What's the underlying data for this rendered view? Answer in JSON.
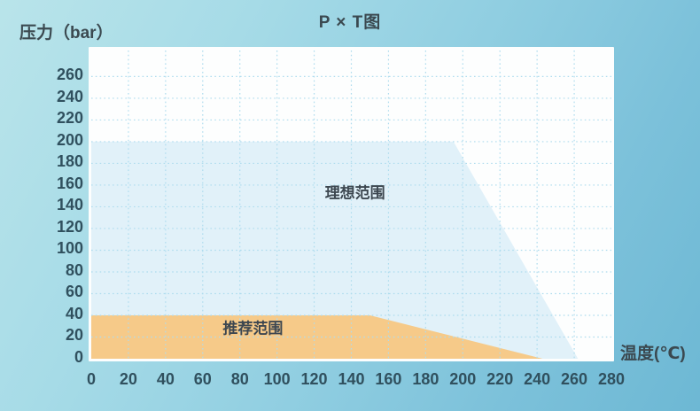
{
  "title": "P × T图",
  "y_axis": {
    "label": "压力（bar）"
  },
  "x_axis": {
    "label": "温度(℃)"
  },
  "chart_data": {
    "type": "area",
    "title": "P × T图",
    "xlabel": "温度(℃)",
    "ylabel": "压力（bar）",
    "xlim": [
      0,
      280
    ],
    "ylim": [
      0,
      284
    ],
    "x_ticks": [
      0,
      20,
      40,
      60,
      80,
      100,
      120,
      140,
      160,
      180,
      200,
      220,
      240,
      260,
      280
    ],
    "y_ticks": [
      0,
      20,
      40,
      60,
      80,
      100,
      120,
      140,
      160,
      180,
      200,
      220,
      240,
      260
    ],
    "grid": "dotted",
    "grid_color": "#aedcee",
    "plot_background": "#fdfefe",
    "regions": [
      {
        "name": "ideal-range",
        "label": "理想范围",
        "color": "#e1f1f9",
        "points": [
          [
            0,
            0
          ],
          [
            0,
            200
          ],
          [
            195,
            200
          ],
          [
            262,
            0
          ]
        ],
        "label_pos": [
          142,
          154
        ]
      },
      {
        "name": "recommended-range",
        "label": "推荐范围",
        "color": "#f6ca89",
        "points": [
          [
            0,
            0
          ],
          [
            0,
            40
          ],
          [
            150,
            40
          ],
          [
            243,
            0
          ]
        ],
        "label_pos": [
          87,
          29
        ]
      }
    ]
  },
  "colors": {
    "page_background_start": "#b9e4ea",
    "page_background_end": "#6db8d4",
    "axis_text": "#30505e",
    "label_text": "#3b4950"
  }
}
